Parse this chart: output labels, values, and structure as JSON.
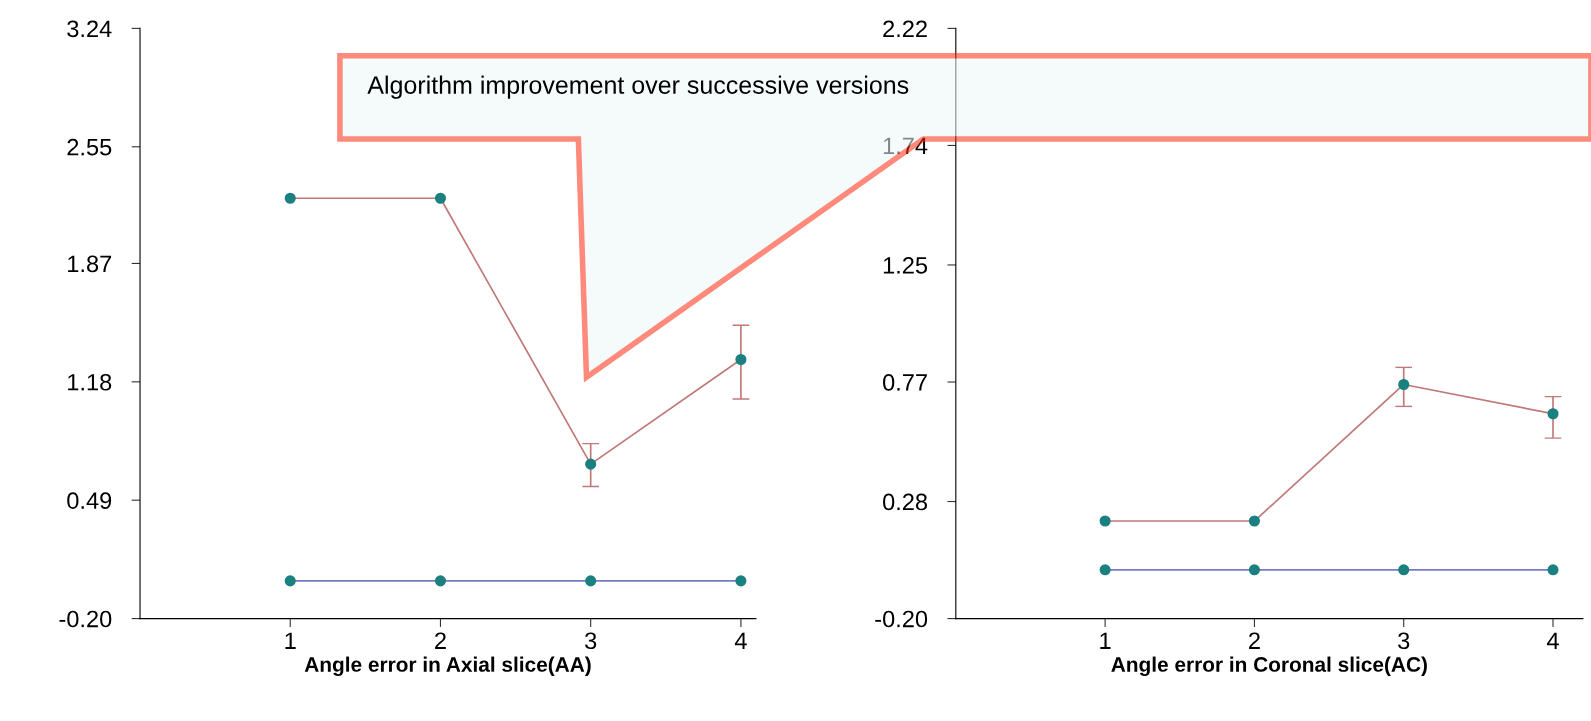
{
  "chart_data": [
    {
      "type": "line",
      "xlabel": "Angle error in Axial slice(AA)",
      "x": [
        1,
        2,
        3,
        4
      ],
      "xlim": [
        0,
        4.1
      ],
      "xticks": [
        1,
        2,
        3,
        4
      ],
      "ylim": [
        -0.2,
        3.24
      ],
      "yticks": [
        {
          "value": 3.24,
          "label": "3.24"
        },
        {
          "value": 2.55,
          "label": "2.55"
        },
        {
          "value": 1.87,
          "label": "1.87"
        },
        {
          "value": 1.18,
          "label": "1.18"
        },
        {
          "value": 0.49,
          "label": "0.49"
        },
        {
          "value": -0.2,
          "label": "-0.20"
        }
      ],
      "marker": "circle",
      "grid": false,
      "legend": false,
      "annotations": [
        "Algorithm improvement over successive versions"
      ],
      "series": [
        {
          "color": "#c07878",
          "values": [
            2.25,
            2.25,
            0.7,
            1.31
          ],
          "errors": [
            null,
            null,
            [
              0.57,
              0.82
            ],
            [
              1.08,
              1.51
            ]
          ]
        },
        {
          "color": "#7878c8",
          "values": [
            0.02,
            0.02,
            0.02,
            0.02
          ]
        }
      ]
    },
    {
      "type": "line",
      "xlabel": "Angle error in Coronal slice(AC)",
      "x": [
        1,
        2,
        3,
        4
      ],
      "xlim": [
        0,
        4.2
      ],
      "xticks": [
        1,
        2,
        3,
        4
      ],
      "ylim": [
        -0.2,
        2.22
      ],
      "yticks": [
        {
          "value": 2.22,
          "label": "2.22"
        },
        {
          "value": 1.74,
          "label": "1.74"
        },
        {
          "value": 1.25,
          "label": "1.25"
        },
        {
          "value": 0.77,
          "label": "0.77"
        },
        {
          "value": 0.28,
          "label": "0.28"
        },
        {
          "value": -0.2,
          "label": "-0.20"
        }
      ],
      "marker": "circle",
      "grid": false,
      "legend": false,
      "series": [
        {
          "color": "#c07878",
          "values": [
            0.2,
            0.2,
            0.76,
            0.64
          ],
          "errors": [
            null,
            null,
            [
              0.67,
              0.83
            ],
            [
              0.54,
              0.71
            ]
          ]
        },
        {
          "color": "#7878c8",
          "values": [
            0.0,
            0.0,
            0.0,
            0.0
          ]
        }
      ]
    }
  ]
}
